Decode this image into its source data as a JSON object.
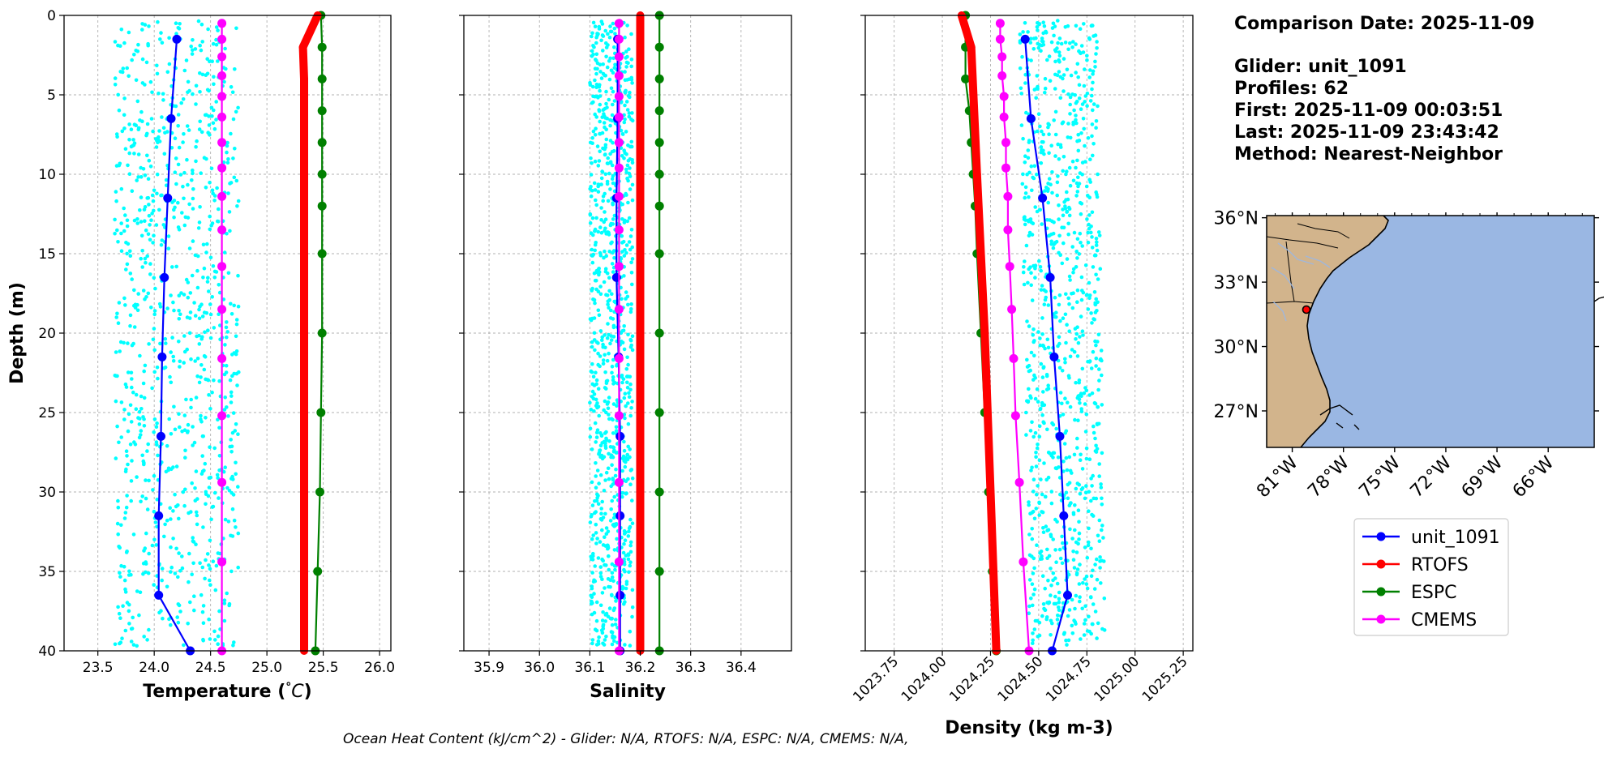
{
  "info": {
    "comparison_date": "Comparison Date: 2025-11-09",
    "glider": "Glider: unit_1091",
    "profiles": "Profiles: 62",
    "first": "First: 2025-11-09 00:03:51",
    "last": "Last: 2025-11-09 23:43:42",
    "method": "Method: Nearest-Neighbor"
  },
  "footer": {
    "ohc": "Ocean Heat Content (kJ/cm^2) - Glider: N/A,  RTOFS: N/A,  ESPC: N/A,  CMEMS: N/A,"
  },
  "colors": {
    "scatter": "#00ffff",
    "unit_1091": "#0000ff",
    "RTOFS": "#ff0000",
    "ESPC": "#008000",
    "CMEMS": "#ff00ff",
    "land": "#d2b48c",
    "ocean": "#9ab7e3"
  },
  "legend": [
    "unit_1091",
    "RTOFS",
    "ESPC",
    "CMEMS"
  ],
  "map": {
    "lat_ticks": [
      "36°N",
      "33°N",
      "30°N",
      "27°N"
    ],
    "lon_ticks": [
      "81°W",
      "78°W",
      "75°W",
      "72°W",
      "69°W",
      "66°W"
    ],
    "glider_position": {
      "lon": -79.9,
      "lat": 31.8
    }
  },
  "chart_data": [
    {
      "type": "line",
      "xlabel": "Temperature (°C)",
      "ylabel": "Depth (m)",
      "xlim": [
        23.2,
        26.1
      ],
      "ylim": [
        40,
        0
      ],
      "x_ticks": [
        "23.5",
        "24.0",
        "24.5",
        "25.0",
        "25.5",
        "26.0"
      ],
      "y_ticks": [
        "0",
        "5",
        "10",
        "15",
        "20",
        "25",
        "30",
        "35",
        "40"
      ],
      "grid": true,
      "scatter_range": [
        23.65,
        24.75
      ],
      "series": [
        {
          "name": "unit_1091",
          "depth": [
            1.5,
            6.5,
            11.5,
            16.5,
            21.5,
            26.5,
            31.5,
            36.5,
            40
          ],
          "values": [
            24.2,
            24.15,
            24.12,
            24.09,
            24.07,
            24.06,
            24.04,
            24.04,
            24.32
          ]
        },
        {
          "name": "RTOFS",
          "depth": [
            0,
            2,
            4,
            6,
            8,
            10,
            12,
            15,
            20,
            25,
            30,
            35,
            40
          ],
          "values": [
            25.45,
            25.32,
            25.33,
            25.33,
            25.33,
            25.33,
            25.33,
            25.33,
            25.33,
            25.33,
            25.33,
            25.33,
            25.33
          ]
        },
        {
          "name": "ESPC",
          "depth": [
            0,
            2,
            4,
            6,
            8,
            10,
            12,
            15,
            20,
            25,
            30,
            35,
            40
          ],
          "values": [
            25.48,
            25.49,
            25.49,
            25.49,
            25.49,
            25.49,
            25.49,
            25.49,
            25.49,
            25.48,
            25.47,
            25.45,
            25.43
          ]
        },
        {
          "name": "CMEMS",
          "depth": [
            0.5,
            1.5,
            2.6,
            3.8,
            5.1,
            6.4,
            8.0,
            9.6,
            11.4,
            13.5,
            15.8,
            18.5,
            21.6,
            25.2,
            29.4,
            34.4,
            40
          ],
          "values": [
            24.6,
            24.6,
            24.6,
            24.6,
            24.6,
            24.6,
            24.6,
            24.6,
            24.6,
            24.6,
            24.6,
            24.6,
            24.6,
            24.6,
            24.6,
            24.6,
            24.6
          ]
        }
      ]
    },
    {
      "type": "line",
      "xlabel": "Salinity",
      "ylabel": "",
      "xlim": [
        35.85,
        36.5
      ],
      "ylim": [
        40,
        0
      ],
      "x_ticks": [
        "35.9",
        "36.0",
        "36.1",
        "36.2",
        "36.3",
        "36.4"
      ],
      "grid": true,
      "scatter_range": [
        36.1,
        36.185
      ],
      "series": [
        {
          "name": "unit_1091",
          "depth": [
            1.5,
            6.5,
            11.5,
            16.5,
            21.5,
            26.5,
            31.5,
            36.5,
            40
          ],
          "values": [
            36.155,
            36.155,
            36.153,
            36.153,
            36.157,
            36.16,
            36.16,
            36.16,
            36.16
          ]
        },
        {
          "name": "RTOFS",
          "depth": [
            0,
            40
          ],
          "values": [
            36.2,
            36.2
          ]
        },
        {
          "name": "ESPC",
          "depth": [
            0,
            2,
            4,
            6,
            8,
            10,
            12,
            15,
            20,
            25,
            30,
            35,
            40
          ],
          "values": [
            36.238,
            36.238,
            36.238,
            36.238,
            36.238,
            36.238,
            36.238,
            36.238,
            36.238,
            36.238,
            36.238,
            36.238,
            36.238
          ]
        },
        {
          "name": "CMEMS",
          "depth": [
            0.5,
            1.5,
            2.6,
            3.8,
            5.1,
            6.4,
            8.0,
            9.6,
            11.4,
            13.5,
            15.8,
            18.5,
            21.6,
            25.2,
            29.4,
            34.4,
            40
          ],
          "values": [
            36.158,
            36.158,
            36.158,
            36.158,
            36.158,
            36.158,
            36.158,
            36.158,
            36.158,
            36.158,
            36.158,
            36.158,
            36.158,
            36.158,
            36.158,
            36.158,
            36.158
          ]
        }
      ]
    },
    {
      "type": "line",
      "xlabel": "Density (kg m-3)",
      "ylabel": "",
      "xlim": [
        1023.6,
        1025.3
      ],
      "ylim": [
        40,
        0
      ],
      "x_ticks": [
        "1023.75",
        "1024.00",
        "1024.25",
        "1024.50",
        "1024.75",
        "1025.00",
        "1025.25"
      ],
      "grid": true,
      "scatter_range": [
        1024.4,
        1024.8
      ],
      "series": [
        {
          "name": "unit_1091",
          "depth": [
            1.5,
            6.5,
            11.5,
            16.5,
            21.5,
            26.5,
            31.5,
            36.5,
            40
          ],
          "values": [
            1024.43,
            1024.46,
            1024.52,
            1024.56,
            1024.58,
            1024.61,
            1024.63,
            1024.65,
            1024.57
          ]
        },
        {
          "name": "RTOFS",
          "depth": [
            0,
            2,
            10,
            20,
            30,
            40
          ],
          "values": [
            1024.1,
            1024.15,
            1024.18,
            1024.22,
            1024.25,
            1024.28
          ]
        },
        {
          "name": "ESPC",
          "depth": [
            0,
            2,
            4,
            6,
            8,
            10,
            12,
            15,
            20,
            25,
            30,
            35,
            40
          ],
          "values": [
            1024.12,
            1024.12,
            1024.12,
            1024.14,
            1024.15,
            1024.16,
            1024.17,
            1024.18,
            1024.2,
            1024.22,
            1024.24,
            1024.26,
            1024.28
          ]
        },
        {
          "name": "CMEMS",
          "depth": [
            0.5,
            1.5,
            2.6,
            3.8,
            5.1,
            6.4,
            8.0,
            9.6,
            11.4,
            13.5,
            15.8,
            18.5,
            21.6,
            25.2,
            29.4,
            34.4,
            40
          ],
          "values": [
            1024.3,
            1024.3,
            1024.31,
            1024.31,
            1024.32,
            1024.32,
            1024.33,
            1024.33,
            1024.34,
            1024.34,
            1024.35,
            1024.36,
            1024.37,
            1024.38,
            1024.4,
            1024.42,
            1024.45
          ]
        }
      ]
    }
  ]
}
